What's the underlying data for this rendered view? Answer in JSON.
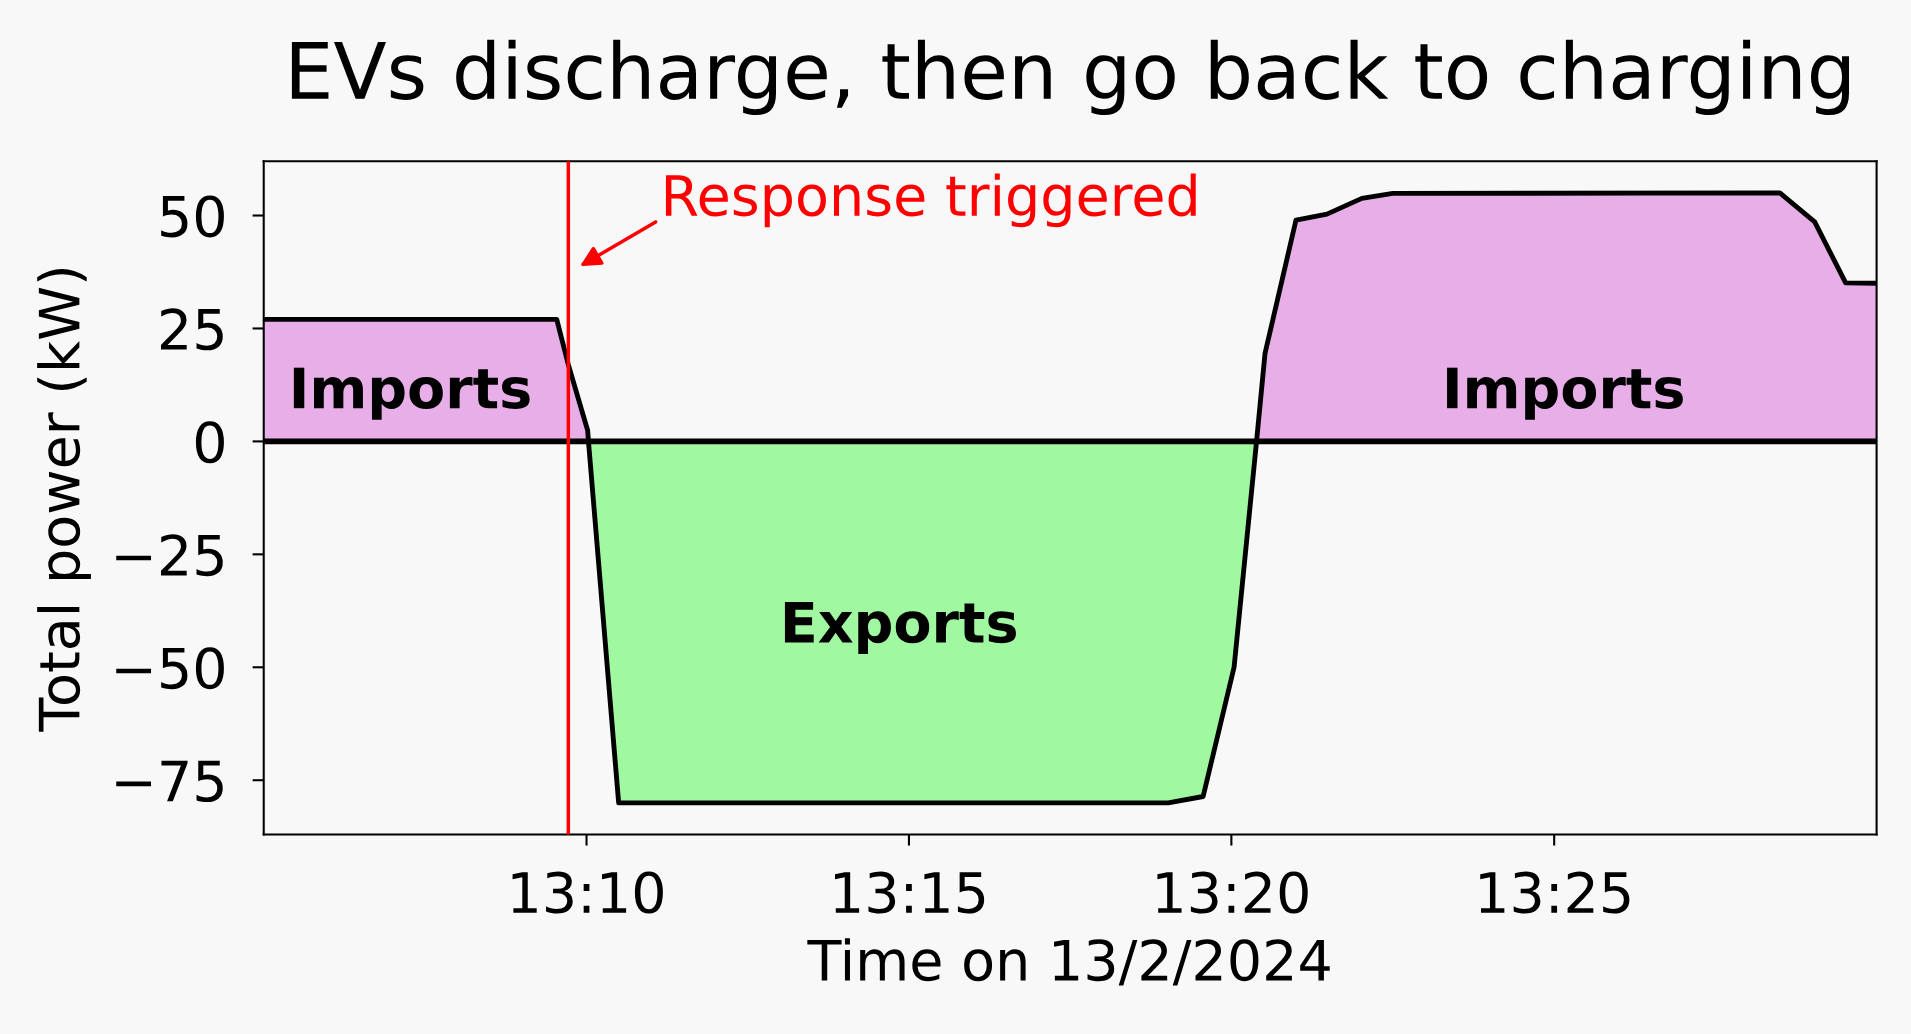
{
  "chart_data": {
    "type": "area",
    "title": "EVs discharge, then go back to charging",
    "xlabel": "Time on 13/2/2024",
    "ylabel": "Total power (kW)",
    "x": [
      13.0833,
      13.159,
      13.162,
      13.167,
      13.1672,
      13.175,
      13.317,
      13.326,
      13.334,
      13.3398,
      13.342,
      13.35,
      13.358,
      13.367,
      13.375,
      13.475,
      13.484,
      13.492,
      13.5
    ],
    "series": [
      {
        "type": "line",
        "color": "#000000",
        "values": [
          27,
          27,
          17,
          2.4,
          0,
          -80,
          -80,
          -78.6,
          -50,
          0,
          19.5,
          49,
          50.3,
          53.8,
          54.9,
          55,
          48.6,
          35.1,
          35
        ]
      },
      {
        "name": "Imports",
        "color": "#e8aee8",
        "values": [
          27,
          27,
          17,
          2.4,
          0,
          null,
          null,
          null,
          null,
          0,
          19.5,
          49,
          50.3,
          53.8,
          54.9,
          55,
          48.6,
          35.1,
          35
        ]
      },
      {
        "name": "Exports",
        "color": "#a0f8a0",
        "values": [
          null,
          null,
          null,
          null,
          0,
          -80,
          -80,
          -78.6,
          -50,
          0,
          null,
          null,
          null,
          null,
          null,
          null,
          null,
          null,
          null
        ]
      }
    ],
    "xlim": [
      13.0833,
      13.5
    ],
    "xticks": [
      {
        "value": 13.1667,
        "label": "13:10"
      },
      {
        "value": 13.25,
        "label": "13:15"
      },
      {
        "value": 13.3333,
        "label": "13:20"
      },
      {
        "value": 13.4167,
        "label": "13:25"
      }
    ],
    "ylim": [
      -87,
      62
    ],
    "yticks": [
      -75,
      -50,
      -25,
      0,
      25,
      50
    ],
    "ref_lines": [
      {
        "axis": "y",
        "value": 0,
        "color": "#000000"
      },
      {
        "axis": "x",
        "value": 13.162,
        "color": "#ff0000"
      }
    ],
    "annotations": [
      "Response triggered"
    ],
    "grid": false,
    "legend": false
  }
}
